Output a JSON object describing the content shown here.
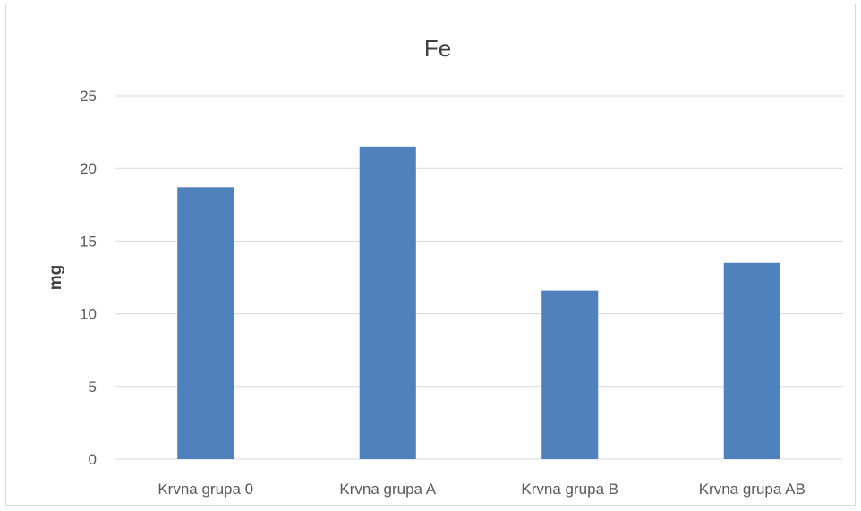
{
  "chart_data": {
    "type": "bar",
    "title": "Fe",
    "xlabel": "",
    "ylabel": "mg",
    "categories": [
      "Krvna grupa 0",
      "Krvna grupa A",
      "Krvna grupa B",
      "Krvna grupa AB"
    ],
    "values": [
      18.7,
      21.5,
      11.6,
      13.5
    ],
    "ylim": [
      0,
      25
    ],
    "yticks": [
      0,
      5,
      10,
      15,
      20,
      25
    ],
    "grid": true,
    "legend": "none",
    "bar_color": "#4f81bd",
    "grid_color": "#d9d9d9"
  }
}
